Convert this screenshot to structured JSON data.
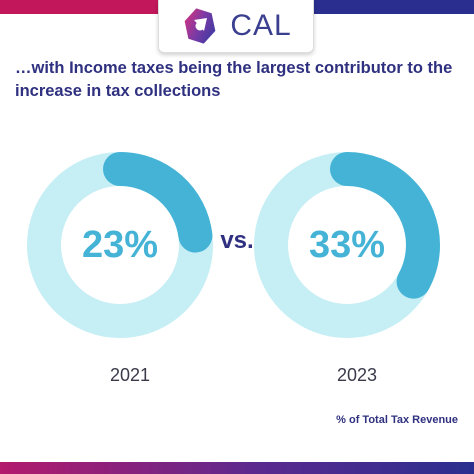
{
  "brand": {
    "name": "CAL"
  },
  "headline": "…with Income taxes being the largest contributor to the increase in tax collections",
  "vs_label": "vs.",
  "colors": {
    "ring_track": "#c5eef5",
    "ring_fill": "#45b3d6",
    "heading": "#2f3180",
    "brand_magenta": "#c2185b",
    "brand_navy": "#2a2f8f"
  },
  "chart_data": [
    {
      "type": "pie",
      "variant": "donut",
      "label": "2021",
      "value": 23,
      "value_label": "23%",
      "max": 100
    },
    {
      "type": "pie",
      "variant": "donut",
      "label": "2023",
      "value": 33,
      "value_label": "33%",
      "max": 100
    }
  ],
  "footnote": "% of Total Tax Revenue"
}
